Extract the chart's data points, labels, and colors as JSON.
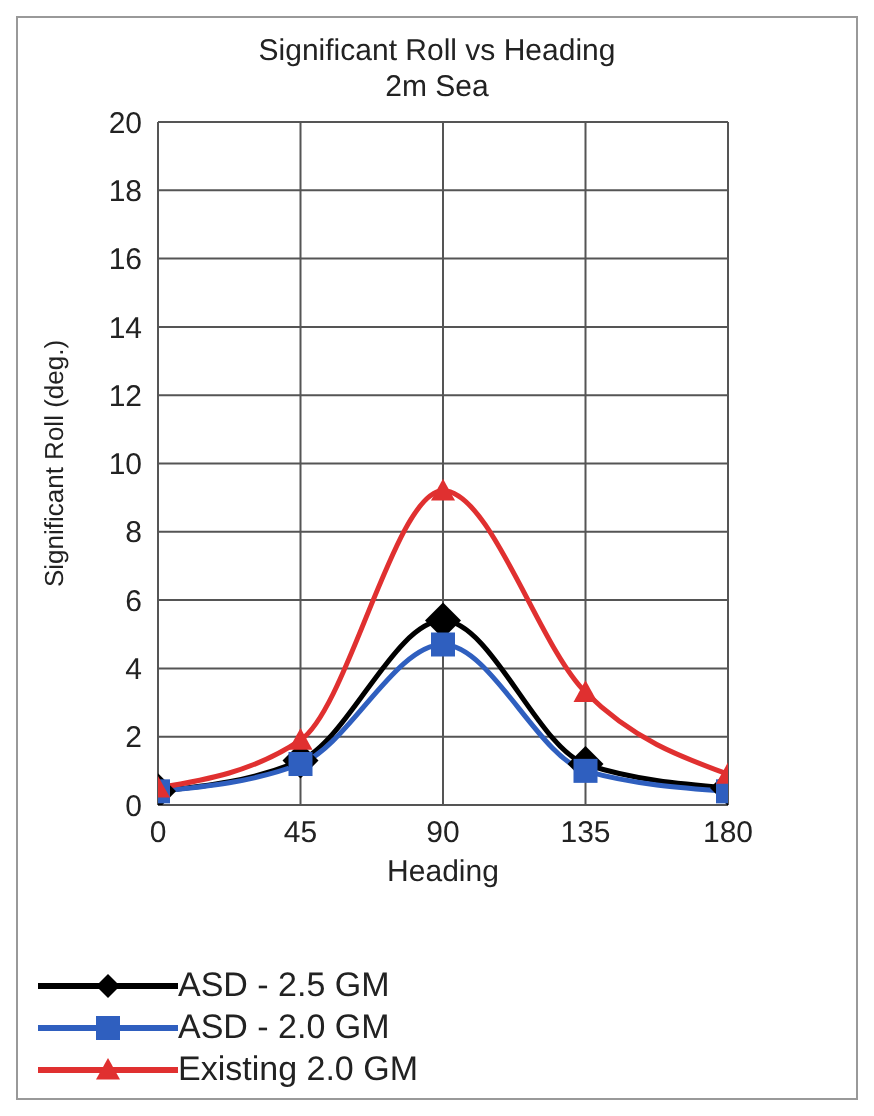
{
  "chart_data": {
    "type": "line",
    "title": "Significant Roll vs Heading",
    "subtitle": "2m Sea",
    "xlabel": "Heading",
    "ylabel": "Significant Roll (deg.)",
    "x": [
      0,
      45,
      90,
      135,
      180
    ],
    "xlim": [
      0,
      180
    ],
    "xticks": [
      0,
      45,
      90,
      135,
      180
    ],
    "ylim": [
      0,
      20
    ],
    "yticks": [
      0,
      2,
      4,
      6,
      8,
      10,
      12,
      14,
      16,
      18,
      20
    ],
    "grid": true,
    "legend": "bottom",
    "line_style": "solid",
    "series": [
      {
        "name": "ASD - 2.5 GM",
        "color": "#000000",
        "marker": "diamond",
        "values": [
          0.4,
          1.3,
          5.4,
          1.2,
          0.5
        ]
      },
      {
        "name": "ASD - 2.0 GM",
        "color": "#2f5fbf",
        "marker": "square",
        "values": [
          0.4,
          1.2,
          4.7,
          1.0,
          0.4
        ]
      },
      {
        "name": "Existing 2.0 GM",
        "color": "#e03030",
        "marker": "triangle",
        "values": [
          0.5,
          1.9,
          9.2,
          3.3,
          0.9
        ]
      }
    ]
  }
}
